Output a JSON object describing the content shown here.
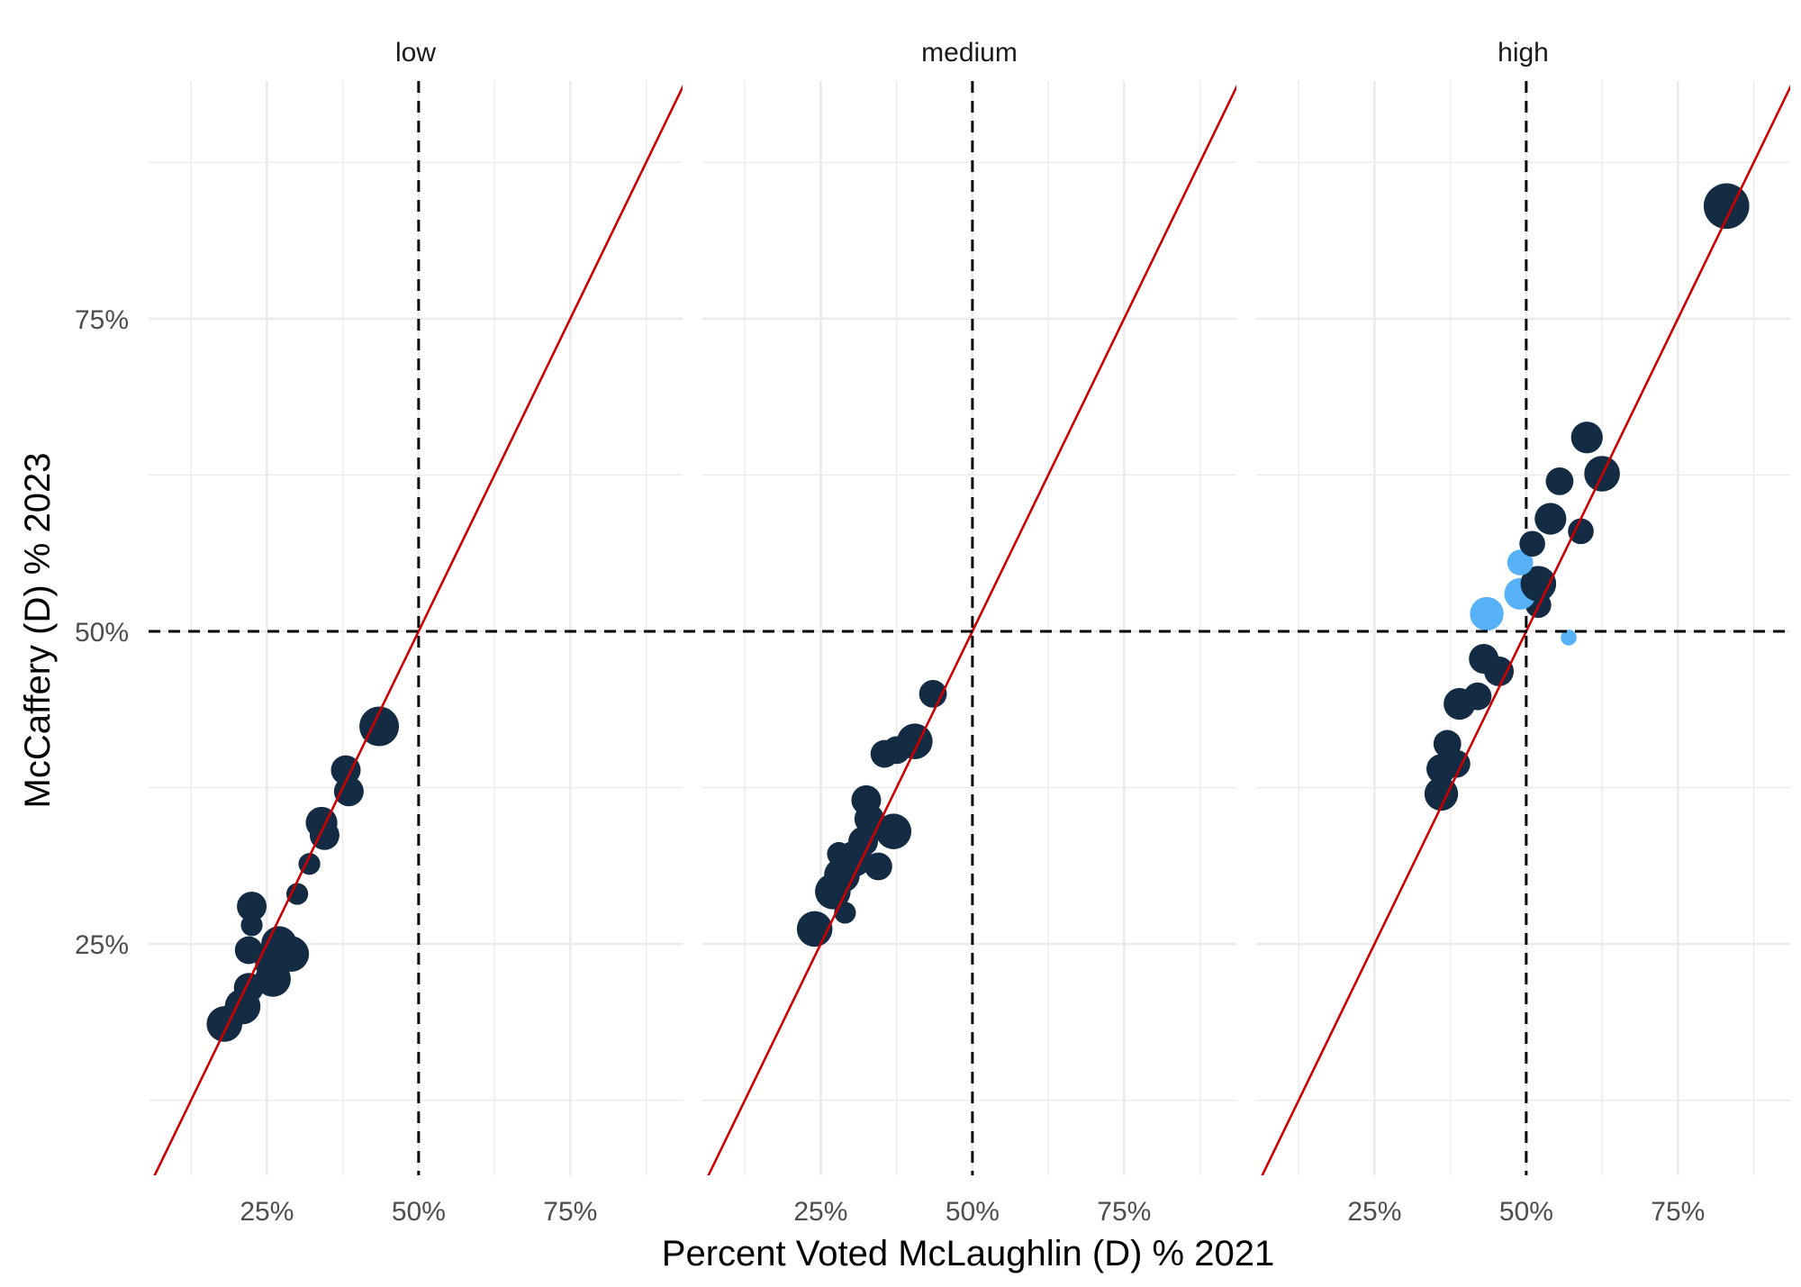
{
  "chart_data": {
    "type": "scatter",
    "title": "",
    "xlabel": "Percent Voted McLaughlin (D) % 2021",
    "ylabel": "McCaffery (D) % 2023",
    "xlim": [
      0.055,
      0.935
    ],
    "ylim": [
      0.065,
      0.94
    ],
    "x_ticks": [
      0.25,
      0.5,
      0.75
    ],
    "x_tick_labels": [
      "25%",
      "50%",
      "75%"
    ],
    "y_ticks": [
      0.25,
      0.5,
      0.75
    ],
    "y_tick_labels": [
      "25%",
      "50%",
      "75%"
    ],
    "grid": true,
    "reference_lines": {
      "diagonal": "y = x",
      "vertical_x": 0.5,
      "horizontal_y": 0.5
    },
    "colors": {
      "point_default": "#132b43",
      "point_highlight": "#56b1f7",
      "diagonal": "#cc0000",
      "grid": "#ebebeb"
    },
    "facets": [
      {
        "name": "low",
        "points": [
          {
            "x": 0.18,
            "y": 0.186,
            "size": 1.8,
            "highlight": false
          },
          {
            "x": 0.21,
            "y": 0.2,
            "size": 1.8,
            "highlight": false
          },
          {
            "x": 0.22,
            "y": 0.215,
            "size": 1.5,
            "highlight": false
          },
          {
            "x": 0.26,
            "y": 0.222,
            "size": 1.8,
            "highlight": false
          },
          {
            "x": 0.255,
            "y": 0.234,
            "size": 1.5,
            "highlight": false
          },
          {
            "x": 0.22,
            "y": 0.245,
            "size": 1.4,
            "highlight": false
          },
          {
            "x": 0.27,
            "y": 0.25,
            "size": 1.8,
            "highlight": false
          },
          {
            "x": 0.29,
            "y": 0.242,
            "size": 1.8,
            "highlight": false
          },
          {
            "x": 0.225,
            "y": 0.265,
            "size": 1.1,
            "highlight": false
          },
          {
            "x": 0.225,
            "y": 0.28,
            "size": 1.5,
            "highlight": false
          },
          {
            "x": 0.3,
            "y": 0.29,
            "size": 1.1,
            "highlight": false
          },
          {
            "x": 0.32,
            "y": 0.314,
            "size": 1.1,
            "highlight": false
          },
          {
            "x": 0.345,
            "y": 0.337,
            "size": 1.5,
            "highlight": false
          },
          {
            "x": 0.34,
            "y": 0.347,
            "size": 1.6,
            "highlight": false
          },
          {
            "x": 0.385,
            "y": 0.372,
            "size": 1.5,
            "highlight": false
          },
          {
            "x": 0.38,
            "y": 0.389,
            "size": 1.5,
            "highlight": false
          },
          {
            "x": 0.435,
            "y": 0.424,
            "size": 2.0,
            "highlight": false
          }
        ]
      },
      {
        "name": "medium",
        "points": [
          {
            "x": 0.24,
            "y": 0.262,
            "size": 1.8,
            "highlight": false
          },
          {
            "x": 0.29,
            "y": 0.275,
            "size": 1.1,
            "highlight": false
          },
          {
            "x": 0.27,
            "y": 0.292,
            "size": 1.8,
            "highlight": false
          },
          {
            "x": 0.285,
            "y": 0.305,
            "size": 1.8,
            "highlight": false
          },
          {
            "x": 0.345,
            "y": 0.312,
            "size": 1.4,
            "highlight": false
          },
          {
            "x": 0.305,
            "y": 0.318,
            "size": 1.8,
            "highlight": false
          },
          {
            "x": 0.28,
            "y": 0.322,
            "size": 1.2,
            "highlight": false
          },
          {
            "x": 0.32,
            "y": 0.332,
            "size": 1.5,
            "highlight": false
          },
          {
            "x": 0.37,
            "y": 0.34,
            "size": 1.8,
            "highlight": false
          },
          {
            "x": 0.33,
            "y": 0.35,
            "size": 1.5,
            "highlight": false
          },
          {
            "x": 0.325,
            "y": 0.365,
            "size": 1.5,
            "highlight": false
          },
          {
            "x": 0.355,
            "y": 0.402,
            "size": 1.4,
            "highlight": false
          },
          {
            "x": 0.375,
            "y": 0.405,
            "size": 1.4,
            "highlight": false
          },
          {
            "x": 0.405,
            "y": 0.412,
            "size": 1.8,
            "highlight": false
          },
          {
            "x": 0.435,
            "y": 0.45,
            "size": 1.4,
            "highlight": false
          }
        ]
      },
      {
        "name": "high",
        "points": [
          {
            "x": 0.36,
            "y": 0.37,
            "size": 1.7,
            "highlight": false
          },
          {
            "x": 0.36,
            "y": 0.39,
            "size": 1.5,
            "highlight": false
          },
          {
            "x": 0.385,
            "y": 0.394,
            "size": 1.4,
            "highlight": false
          },
          {
            "x": 0.37,
            "y": 0.41,
            "size": 1.4,
            "highlight": false
          },
          {
            "x": 0.39,
            "y": 0.442,
            "size": 1.6,
            "highlight": false
          },
          {
            "x": 0.42,
            "y": 0.448,
            "size": 1.4,
            "highlight": false
          },
          {
            "x": 0.455,
            "y": 0.468,
            "size": 1.5,
            "highlight": false
          },
          {
            "x": 0.43,
            "y": 0.478,
            "size": 1.5,
            "highlight": false
          },
          {
            "x": 0.57,
            "y": 0.495,
            "size": 0.8,
            "highlight": true
          },
          {
            "x": 0.435,
            "y": 0.514,
            "size": 1.7,
            "highlight": true
          },
          {
            "x": 0.52,
            "y": 0.521,
            "size": 1.3,
            "highlight": false
          },
          {
            "x": 0.49,
            "y": 0.53,
            "size": 1.6,
            "highlight": true
          },
          {
            "x": 0.52,
            "y": 0.538,
            "size": 1.8,
            "highlight": false
          },
          {
            "x": 0.49,
            "y": 0.555,
            "size": 1.3,
            "highlight": true
          },
          {
            "x": 0.51,
            "y": 0.57,
            "size": 1.3,
            "highlight": false
          },
          {
            "x": 0.59,
            "y": 0.58,
            "size": 1.3,
            "highlight": false
          },
          {
            "x": 0.54,
            "y": 0.59,
            "size": 1.6,
            "highlight": false
          },
          {
            "x": 0.555,
            "y": 0.62,
            "size": 1.4,
            "highlight": false
          },
          {
            "x": 0.625,
            "y": 0.626,
            "size": 1.8,
            "highlight": false
          },
          {
            "x": 0.6,
            "y": 0.655,
            "size": 1.6,
            "highlight": false
          },
          {
            "x": 0.83,
            "y": 0.84,
            "size": 2.3,
            "highlight": false
          }
        ]
      }
    ]
  }
}
